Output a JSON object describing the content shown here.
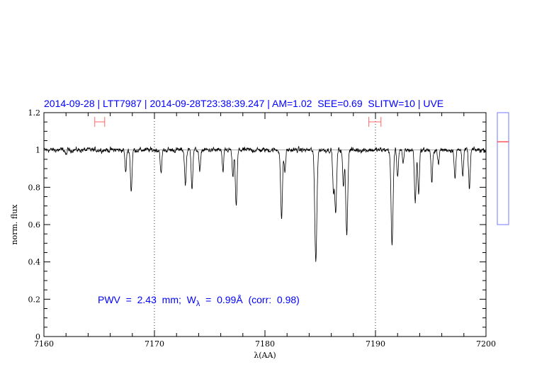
{
  "chart_data": {
    "type": "line",
    "title": "2014-09-28 | LTT7987 | 2014-09-28T23:38:39.247 | AM=1.02  SEE=0.69  SLITW=10 | UVE",
    "xlabel": "λ(AA)",
    "ylabel": "norm. flux",
    "xlim": [
      7160,
      7200
    ],
    "ylim": [
      0,
      1.2
    ],
    "x_ticks": [
      "7160",
      "7170",
      "7180",
      "7190",
      "7200"
    ],
    "y_ticks": [
      "0",
      "0.2",
      "0.4",
      "0.6",
      "0.8",
      "1",
      "1.2"
    ],
    "x_tick_values": [
      7160,
      7170,
      7180,
      7190,
      7200
    ],
    "y_tick_values": [
      0,
      0.2,
      0.4,
      0.6,
      0.8,
      1.0,
      1.2
    ],
    "grid": false,
    "continuum_level": 1.0,
    "reference_lines_x": [
      7170,
      7190
    ],
    "continuum_noise": 0.012,
    "absorption_features": [
      {
        "wavelength": 7162.0,
        "min_flux": 0.97
      },
      {
        "wavelength": 7167.4,
        "min_flux": 0.88
      },
      {
        "wavelength": 7167.9,
        "min_flux": 0.78
      },
      {
        "wavelength": 7170.6,
        "min_flux": 0.87
      },
      {
        "wavelength": 7172.8,
        "min_flux": 0.81
      },
      {
        "wavelength": 7173.4,
        "min_flux": 0.8
      },
      {
        "wavelength": 7174.1,
        "min_flux": 0.88
      },
      {
        "wavelength": 7176.2,
        "min_flux": 0.88
      },
      {
        "wavelength": 7177.1,
        "min_flux": 0.85
      },
      {
        "wavelength": 7177.4,
        "min_flux": 0.7
      },
      {
        "wavelength": 7181.5,
        "min_flux": 0.63
      },
      {
        "wavelength": 7181.8,
        "min_flux": 0.88
      },
      {
        "wavelength": 7184.6,
        "min_flux": 0.41
      },
      {
        "wavelength": 7186.2,
        "min_flux": 0.78
      },
      {
        "wavelength": 7186.4,
        "min_flux": 0.66
      },
      {
        "wavelength": 7187.1,
        "min_flux": 0.8
      },
      {
        "wavelength": 7187.4,
        "min_flux": 0.55
      },
      {
        "wavelength": 7191.5,
        "min_flux": 0.49
      },
      {
        "wavelength": 7192.0,
        "min_flux": 0.86
      },
      {
        "wavelength": 7192.5,
        "min_flux": 0.92
      },
      {
        "wavelength": 7193.6,
        "min_flux": 0.72
      },
      {
        "wavelength": 7193.9,
        "min_flux": 0.77
      },
      {
        "wavelength": 7195.1,
        "min_flux": 0.82
      },
      {
        "wavelength": 7195.7,
        "min_flux": 0.92
      },
      {
        "wavelength": 7197.2,
        "min_flux": 0.85
      },
      {
        "wavelength": 7197.9,
        "min_flux": 0.87
      },
      {
        "wavelength": 7198.5,
        "min_flux": 0.79
      }
    ],
    "fit_windows": [
      [
        7164.6,
        7165.5
      ],
      [
        7189.4,
        7190.5
      ]
    ],
    "annotation": "PWV  =  2.43  mm;  W",
    "annotation_sub": "λ",
    "annotation_tail": "  =  0.99Å  (corr:  0.98)",
    "side_indicator": {
      "range": [
        0,
        1
      ],
      "level": 0.74
    },
    "colors": {
      "spectrum": "#000000",
      "title": "#0000ff",
      "fit_window": "#ff6666",
      "continuum": "#999999",
      "indicator_box": "#7777ff",
      "indicator_level": "#ff5555"
    }
  }
}
